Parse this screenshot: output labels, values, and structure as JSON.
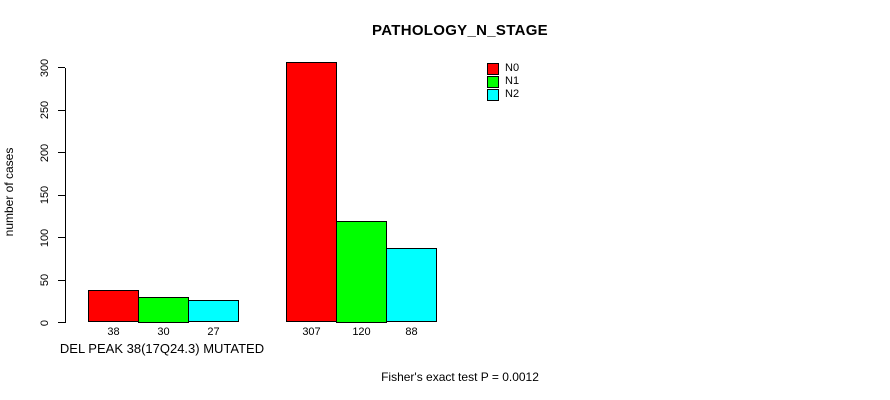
{
  "chart_data": {
    "type": "bar",
    "title": "PATHOLOGY_N_STAGE",
    "xlabel": "",
    "ylabel": "number of cases",
    "ylim": [
      0,
      300
    ],
    "yticks": [
      0,
      50,
      100,
      150,
      200,
      250,
      300
    ],
    "grid": false,
    "legend_position": "top-right",
    "series": [
      "N0",
      "N1",
      "N2"
    ],
    "colors": [
      "#ff0000",
      "#00ff00",
      "#00ffff"
    ],
    "groups": [
      {
        "label": "DEL PEAK 38(17Q24.3) MUTATED",
        "values": [
          38,
          30,
          27
        ]
      },
      {
        "label": "",
        "values": [
          307,
          120,
          88
        ]
      }
    ],
    "bar_value_labels": [
      "38",
      "30",
      "27",
      "307",
      "120",
      "88"
    ],
    "annotation": "Fisher's exact test P = 0.0012"
  }
}
